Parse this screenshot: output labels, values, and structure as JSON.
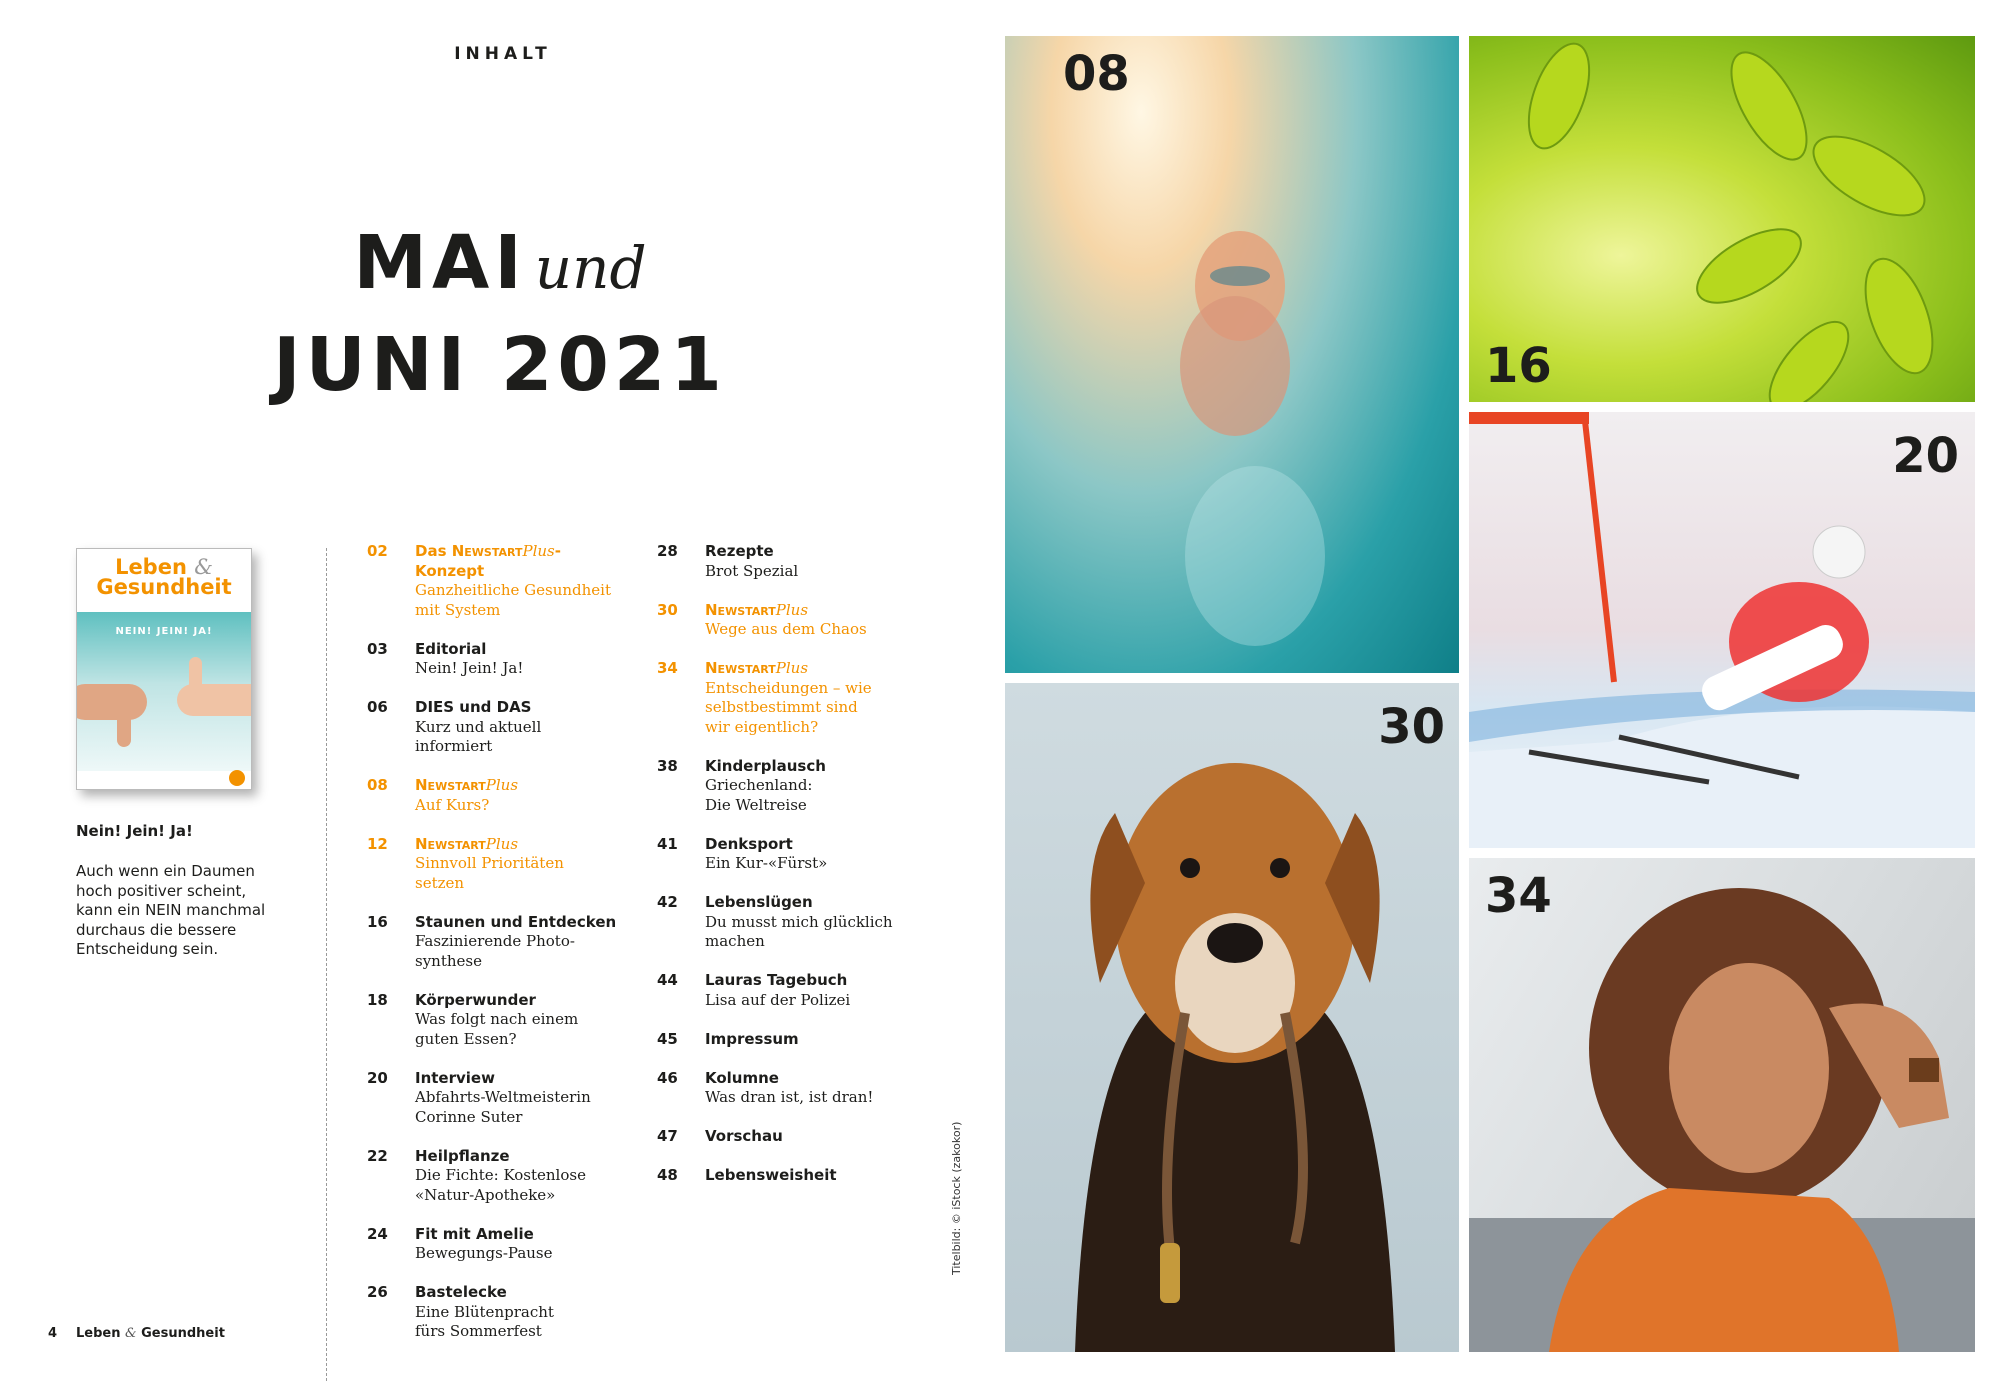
{
  "header": {
    "section_label": "INHALT",
    "title_line1": "MAI",
    "title_und": "und",
    "title_line2": "JUNI 2021"
  },
  "cover": {
    "logo_leben": "Leben",
    "logo_amp": "&",
    "logo_gesundheit": "Gesundheit",
    "headline": "NEIN! JEIN! JA!",
    "caption_title": "Nein! Jein! Ja!",
    "caption_body": "Auch wenn ein Daumen\nhoch positiver scheint,\nkann ein NEIN manchmal\ndurchaus die bessere\nEntscheidung sein."
  },
  "footer": {
    "page_number": "4",
    "brand_leben": "Leben",
    "brand_amp": "&",
    "brand_gesundheit": "Gesundheit"
  },
  "accent_color": "#f39200",
  "toc": {
    "columns": [
      [
        {
          "page": "02",
          "highlight": true,
          "prefix": "Das ",
          "brand": "Newstart",
          "plus": "Plus",
          "suffix": "-Konzept",
          "subtitle": "Ganzheitliche Gesundheit\nmit System"
        },
        {
          "page": "03",
          "title": "Editorial",
          "subtitle": "Nein! Jein! Ja!"
        },
        {
          "page": "06",
          "title": "DIES und DAS",
          "subtitle": "Kurz und aktuell informiert"
        },
        {
          "page": "08",
          "highlight": true,
          "brand": "Newstart",
          "plus": "Plus",
          "subtitle": "Auf Kurs?"
        },
        {
          "page": "12",
          "highlight": true,
          "brand": "Newstart",
          "plus": "Plus",
          "subtitle": "Sinnvoll Prioritäten setzen"
        },
        {
          "page": "16",
          "title": "Staunen und Entdecken",
          "subtitle": "Faszinierende Photo-\nsynthese"
        },
        {
          "page": "18",
          "title": "Körperwunder",
          "subtitle": "Was folgt nach einem\nguten Essen?"
        },
        {
          "page": "20",
          "title": "Interview",
          "subtitle": "Abfahrts-Weltmeisterin\nCorinne Suter"
        },
        {
          "page": "22",
          "title": "Heilpflanze",
          "subtitle": "Die Fichte: Kostenlose\n«Natur-Apotheke»"
        },
        {
          "page": "24",
          "title": "Fit mit Amelie",
          "subtitle": "Bewegungs-Pause"
        },
        {
          "page": "26",
          "title": "Bastelecke",
          "subtitle": "Eine Blütenpracht\nfürs Sommerfest"
        }
      ],
      [
        {
          "page": "28",
          "title": "Rezepte",
          "subtitle": "Brot Spezial"
        },
        {
          "page": "30",
          "highlight": true,
          "brand": "Newstart",
          "plus": "Plus",
          "subtitle": "Wege aus dem Chaos"
        },
        {
          "page": "34",
          "highlight": true,
          "brand": "Newstart",
          "plus": "Plus",
          "subtitle": "Entscheidungen – wie\nselbstbestimmt sind\nwir eigentlich?"
        },
        {
          "page": "38",
          "title": "Kinderplausch",
          "subtitle": "Griechenland:\nDie Weltreise"
        },
        {
          "page": "41",
          "title": "Denksport",
          "subtitle": "Ein Kur-«Fürst»"
        },
        {
          "page": "42",
          "title": "Lebenslügen",
          "subtitle": "Du musst mich glücklich\nmachen"
        },
        {
          "page": "44",
          "title": "Lauras Tagebuch",
          "subtitle": "Lisa auf der Polizei"
        },
        {
          "page": "45",
          "title": "Impressum"
        },
        {
          "page": "46",
          "title": "Kolumne",
          "subtitle": "Was dran ist, ist dran!"
        },
        {
          "page": "47",
          "title": "Vorschau"
        },
        {
          "page": "48",
          "title": "Lebensweisheit"
        }
      ]
    ]
  },
  "credit": "Titelbild: © iStock (zakokor)",
  "photos": [
    {
      "page": "08",
      "subject": "child-swimming-underwater"
    },
    {
      "page": "16",
      "subject": "green-leaves"
    },
    {
      "page": "20",
      "subject": "downhill-skier"
    },
    {
      "page": "30",
      "subject": "dog-with-leash"
    },
    {
      "page": "34",
      "subject": "smiling-woman"
    }
  ]
}
